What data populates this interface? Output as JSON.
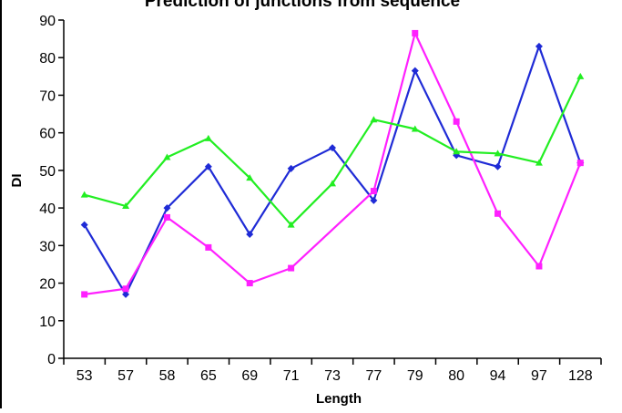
{
  "chart_data": {
    "type": "line",
    "title": "Prediction of junctions from sequence",
    "xlabel": "Length",
    "ylabel": "DI",
    "ylim": [
      0,
      90
    ],
    "yticks": [
      0,
      10,
      20,
      30,
      40,
      50,
      60,
      70,
      80,
      90
    ],
    "categories": [
      "53",
      "57",
      "58",
      "65",
      "69",
      "71",
      "73",
      "77",
      "79",
      "80",
      "94",
      "97",
      "128"
    ],
    "grid": false,
    "legend": "none",
    "series": [
      {
        "color": "#1f2bd6",
        "marker": "diamond",
        "values": [
          35.5,
          17,
          40,
          51,
          33,
          50.5,
          56,
          42,
          76.5,
          54,
          51,
          83,
          52
        ]
      },
      {
        "color": "#ff20ff",
        "marker": "square",
        "values": [
          17,
          18.5,
          37.5,
          29.5,
          20,
          24,
          null,
          44.5,
          86.5,
          63,
          38.5,
          24.5,
          52
        ]
      },
      {
        "color": "#22ee22",
        "marker": "triangle",
        "values": [
          43.5,
          40.5,
          53.5,
          58.5,
          48,
          35.5,
          46.5,
          63.5,
          61,
          55,
          54.5,
          52,
          75
        ]
      }
    ]
  }
}
